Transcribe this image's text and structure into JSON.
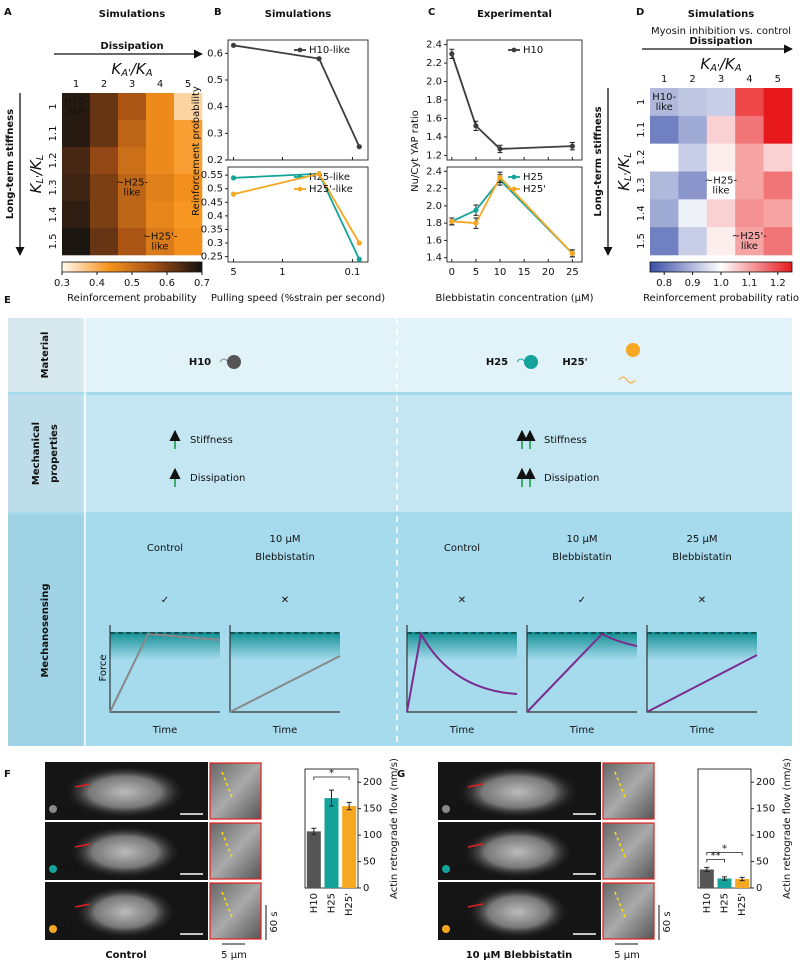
{
  "chart_data": [
    {
      "panel": "A",
      "type": "heatmap",
      "title": "Simulations",
      "x_header": "Dissipation",
      "y_header": "Long-term stiffness",
      "x_label": [
        "K",
        "A'",
        "/K",
        "A"
      ],
      "y_label": [
        "K",
        "L'",
        "/K",
        "L"
      ],
      "x": [
        "1",
        "2",
        "3",
        "4",
        "5"
      ],
      "y": [
        "1",
        "1.1",
        "1.2",
        "1.3",
        "1.4",
        "1.5"
      ],
      "values": [
        [
          0.68,
          0.62,
          0.55,
          0.45,
          0.35
        ],
        [
          0.68,
          0.62,
          0.52,
          0.45,
          0.42
        ],
        [
          0.65,
          0.58,
          0.5,
          0.45,
          0.42
        ],
        [
          0.66,
          0.6,
          0.52,
          0.47,
          0.44
        ],
        [
          0.67,
          0.6,
          0.52,
          0.46,
          0.43
        ],
        [
          0.69,
          0.62,
          0.55,
          0.48,
          0.44
        ]
      ],
      "clim": [
        0.3,
        0.7
      ],
      "colorbar_ticks": [
        0.3,
        0.4,
        0.5,
        0.6,
        0.7
      ],
      "colorbar_label": "Reinforcement probability",
      "colors": [
        "#fffaf0",
        "#f7941d",
        "#a04d14",
        "#111111"
      ],
      "annotations": [
        {
          "text": [
            "H10-",
            "like"
          ],
          "x": "1",
          "y": "1"
        },
        {
          "text": [
            "~H25-",
            "like"
          ],
          "x": "3",
          "y": "1.3"
        },
        {
          "text": [
            "~H25'-",
            "like"
          ],
          "x": "4",
          "y": "1.5"
        }
      ],
      "annotation_color": "#ffffff"
    },
    {
      "panel": "B",
      "type": "line",
      "title": "Simulations",
      "x_label": "Pulling speed (%strain per second)",
      "y_label": "Reinforcement probability",
      "log_x": true,
      "x": [
        5,
        0.3,
        0.08
      ],
      "xlim": [
        6,
        0.06
      ],
      "xticks": [
        5,
        1,
        0.1
      ],
      "legend": "upper right",
      "subplots": [
        {
          "ylim": [
            0.2,
            0.65
          ],
          "yticks": [
            0.2,
            0.3,
            0.4,
            0.5,
            0.6
          ],
          "series": [
            {
              "name": "H10-like",
              "color": "#3d3d3d",
              "values": [
                0.63,
                0.58,
                0.25
              ]
            }
          ]
        },
        {
          "ylim": [
            0.23,
            0.58
          ],
          "yticks": [
            0.25,
            0.3,
            0.35,
            0.4,
            0.45,
            0.5,
            0.55
          ],
          "series": [
            {
              "name": "H25-like",
              "color": "#13a39a",
              "values": [
                0.54,
                0.555,
                0.24
              ]
            },
            {
              "name": "H25'-like",
              "color": "#f7a823",
              "values": [
                0.48,
                0.555,
                0.3
              ]
            }
          ]
        }
      ]
    },
    {
      "panel": "C",
      "type": "line",
      "title": "Experimental",
      "x_label": "Blebbistatin concentration (μM)",
      "y_label": "Nu/Cyt YAP ratio",
      "log_x": false,
      "x": [
        0,
        5,
        10,
        25
      ],
      "xlim": [
        -1,
        27
      ],
      "xticks": [
        0,
        5,
        10,
        15,
        20,
        25
      ],
      "legend": "upper right",
      "subplots": [
        {
          "ylim": [
            1.15,
            2.45
          ],
          "yticks": [
            1.2,
            1.4,
            1.6,
            1.8,
            {
              "value": 2,
              "label": "2.0"
            },
            2.2,
            2.4
          ],
          "series": [
            {
              "name": "H10",
              "color": "#3d3d3d",
              "values": [
                2.3,
                1.52,
                1.27,
                1.3
              ],
              "errors": [
                0.05,
                0.05,
                0.04,
                0.04
              ]
            }
          ]
        },
        {
          "ylim": [
            1.35,
            2.45
          ],
          "yticks": [
            1.4,
            1.6,
            1.8,
            {
              "value": 2,
              "label": "2.0"
            },
            2.2,
            2.4
          ],
          "series": [
            {
              "name": "H25",
              "color": "#13a39a",
              "values": [
                1.82,
                1.95,
                2.3,
                1.45
              ],
              "errors": [
                0.04,
                0.06,
                0.06,
                0.04
              ]
            },
            {
              "name": "H25'",
              "color": "#f7a823",
              "values": [
                1.82,
                1.8,
                2.33,
                1.45
              ],
              "errors": [
                0.04,
                0.06,
                0.06,
                0.04
              ]
            }
          ]
        }
      ]
    },
    {
      "panel": "D",
      "type": "heatmap",
      "title": "Simulations",
      "subtitle": "Myosin inhibition vs. control",
      "x_header": "Dissipation",
      "y_header": "Long-term stiffness",
      "x_label": [
        "K",
        "A'",
        "/K",
        "A"
      ],
      "y_label": [
        "K",
        "L'",
        "/K",
        "L"
      ],
      "x": [
        "1",
        "2",
        "3",
        "4",
        "5"
      ],
      "y": [
        "1",
        "1.1",
        "1.2",
        "1.3",
        "1.4",
        "1.5"
      ],
      "values": [
        [
          0.9,
          0.92,
          0.93,
          1.2,
          1.25
        ],
        [
          0.82,
          0.88,
          1.05,
          1.15,
          1.25
        ],
        [
          1.0,
          0.93,
          1.02,
          1.1,
          1.05
        ],
        [
          0.9,
          0.85,
          1.0,
          1.1,
          1.15
        ],
        [
          0.88,
          0.98,
          1.05,
          1.12,
          1.1
        ],
        [
          0.82,
          0.93,
          1.02,
          1.1,
          1.15
        ]
      ],
      "clim": [
        0.75,
        1.25
      ],
      "colorbar_ticks": [
        0.8,
        0.9,
        {
          "value": 1,
          "label": "1.0"
        },
        1.1,
        1.2
      ],
      "colorbar_label": "Reinforcement probability ratio",
      "colors": [
        "#3a4fa8",
        "#ffffff",
        "#e8191c"
      ],
      "annotations": [
        {
          "text": [
            "H10-",
            "like"
          ],
          "x": "1",
          "y": "1"
        },
        {
          "text": [
            "~H25-",
            "like"
          ],
          "x": "3",
          "y": "1.3"
        },
        {
          "text": [
            "~H25'-",
            "like"
          ],
          "x": "4",
          "y": "1.5"
        }
      ],
      "annotation_color": "#222222"
    },
    {
      "panel": "F",
      "type": "bar",
      "y_label": "Actin retrograde flow (nm/s)",
      "categories": [
        "H10",
        "H25",
        "H25'"
      ],
      "values": [
        107,
        170,
        155
      ],
      "errors": [
        6,
        15,
        7
      ],
      "colors": [
        "#555555",
        "#13a39a",
        "#f7a823"
      ],
      "ylim": [
        0,
        225
      ],
      "yticks": [
        0,
        50,
        100,
        150,
        200
      ],
      "significance": [
        {
          "label": "*",
          "pair": [
            "H10",
            "H25'"
          ]
        }
      ]
    },
    {
      "panel": "G",
      "type": "bar",
      "y_label": "Actin retrograde flow (nm/s)",
      "categories": [
        "H10",
        "H25",
        "H25'"
      ],
      "values": [
        35,
        18,
        17
      ],
      "errors": [
        4,
        3,
        3
      ],
      "colors": [
        "#555555",
        "#13a39a",
        "#f7a823"
      ],
      "ylim": [
        0,
        225
      ],
      "yticks": [
        0,
        50,
        100,
        150,
        200
      ],
      "significance": [
        {
          "label": "**",
          "pair": [
            "H10",
            "H25"
          ]
        },
        {
          "label": "*",
          "pair": [
            "H10",
            "H25'"
          ]
        }
      ]
    }
  ],
  "panel_e": {
    "letter": "E",
    "rows": [
      [
        "Material"
      ],
      [
        "Mechanical",
        "properties"
      ],
      [
        "Mechanosensing"
      ]
    ],
    "materials": [
      "H10",
      "H25",
      "H25'"
    ],
    "properties": [
      "Stiffness",
      "Dissipation"
    ],
    "conditions": [
      {
        "label": [
          "Control"
        ],
        "outcome": "✓"
      },
      {
        "label": [
          "10 μM",
          "Blebbistatin"
        ],
        "outcome": "✕"
      },
      {
        "label": [
          "Control"
        ],
        "outcome": "✕"
      },
      {
        "label": [
          "10 μM",
          "Blebbistatin"
        ],
        "outcome": "✓"
      },
      {
        "label": [
          "25 μM",
          "Blebbistatin"
        ],
        "outcome": "✕"
      }
    ],
    "force_label": "Force",
    "time_label": "Time"
  },
  "micrographs": [
    {
      "letter": "F",
      "cells": [
        "H10",
        "H25",
        "H25'"
      ],
      "time_scale": "60 s",
      "length_scale": "5 μm",
      "condition": "Control"
    },
    {
      "letter": "G",
      "cells": [
        "H10",
        "H25",
        "H25'"
      ],
      "time_scale": "60 s",
      "length_scale": "5 μm",
      "condition": "10 μM Blebbistatin"
    }
  ]
}
